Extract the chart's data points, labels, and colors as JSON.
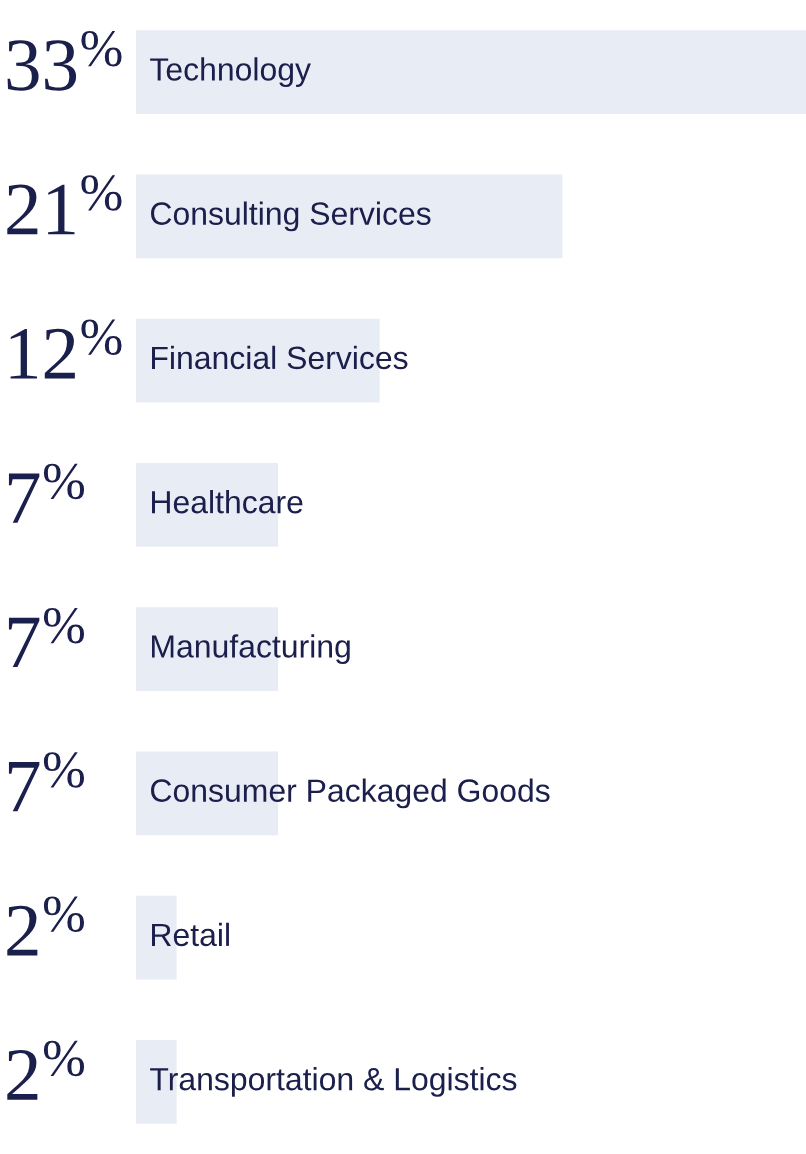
{
  "chart_data": {
    "type": "bar",
    "orientation": "horizontal",
    "categories": [
      "Technology",
      "Consulting Services",
      "Financial Services",
      "Healthcare",
      "Manufacturing",
      "Consumer Packaged Goods",
      "Retail",
      "Transportation & Logistics"
    ],
    "values": [
      33,
      21,
      12,
      7,
      7,
      7,
      2,
      2
    ],
    "color": "#e8ecf5",
    "value_labels": [
      "33$^{%}$",
      "21$^{%}$",
      "12$^{%}$",
      "7$^{%}$",
      "7$^{%}$",
      "7$^{%}$",
      "2$^{%}$",
      "2$^{%}$"
    ]
  }
}
